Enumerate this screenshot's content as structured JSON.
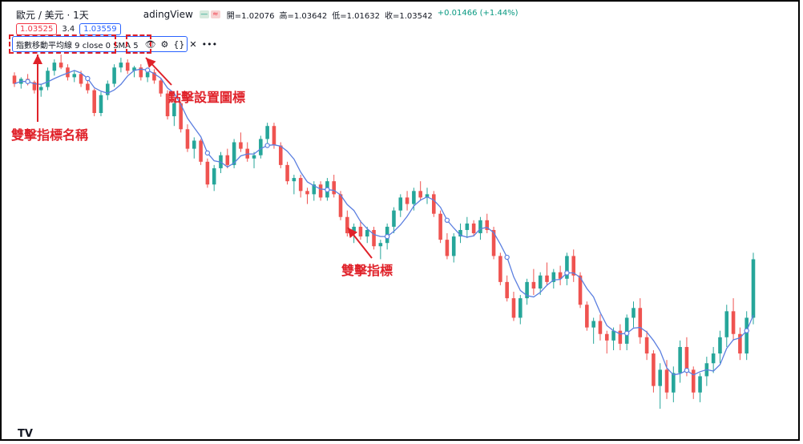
{
  "header": {
    "symbol": "歐元 / 美元 · 1天",
    "brand": "adingView",
    "ohlc": {
      "open": "開=1.02076",
      "high": "高=1.03642",
      "low": "低=1.01632",
      "close": "收=1.03542",
      "change": "+0.01466 (+1.44%)"
    }
  },
  "prices": {
    "sell": "1.03525",
    "spread": "3.4",
    "buy": "1.03559"
  },
  "indicator": {
    "name": "指數移動平均線 9 close 0 SMA 5",
    "eye_icon": "eye-icon",
    "settings_icon": "gear-icon",
    "source_icon": "code-braces-icon",
    "close_icon": "close-icon",
    "more_icon": "more-icon"
  },
  "annotations": {
    "settings": "點擊設置圖標",
    "indicator_name": "雙擊指標名稱",
    "indicator_line": "雙擊指標"
  },
  "logo": "TV",
  "colors": {
    "up": "#26a69a",
    "down": "#ef5350",
    "ma": "#5b7fe0",
    "annotation": "#e0222a",
    "accent": "#2962ff"
  },
  "chart_data": {
    "type": "candlestick",
    "series": [
      {
        "name": "candles",
        "values": [
          [
            1.075,
            1.077,
            1.068,
            1.07
          ],
          [
            1.07,
            1.074,
            1.067,
            1.073
          ],
          [
            1.073,
            1.076,
            1.069,
            1.071
          ],
          [
            1.071,
            1.072,
            1.064,
            1.066
          ],
          [
            1.066,
            1.07,
            1.062,
            1.068
          ],
          [
            1.068,
            1.08,
            1.066,
            1.078
          ],
          [
            1.078,
            1.085,
            1.075,
            1.083
          ],
          [
            1.083,
            1.088,
            1.079,
            1.08
          ],
          [
            1.08,
            1.082,
            1.072,
            1.074
          ],
          [
            1.074,
            1.078,
            1.071,
            1.076
          ],
          [
            1.076,
            1.078,
            1.068,
            1.07
          ],
          [
            1.07,
            1.073,
            1.064,
            1.066
          ],
          [
            1.066,
            1.067,
            1.05,
            1.052
          ],
          [
            1.052,
            1.065,
            1.05,
            1.063
          ],
          [
            1.063,
            1.072,
            1.06,
            1.07
          ],
          [
            1.07,
            1.082,
            1.068,
            1.08
          ],
          [
            1.08,
            1.086,
            1.077,
            1.083
          ],
          [
            1.083,
            1.085,
            1.076,
            1.078
          ],
          [
            1.078,
            1.081,
            1.074,
            1.08
          ],
          [
            1.08,
            1.082,
            1.072,
            1.074
          ],
          [
            1.074,
            1.079,
            1.071,
            1.077
          ],
          [
            1.077,
            1.079,
            1.07,
            1.072
          ],
          [
            1.072,
            1.073,
            1.062,
            1.064
          ],
          [
            1.064,
            1.066,
            1.048,
            1.05
          ],
          [
            1.05,
            1.06,
            1.044,
            1.058
          ],
          [
            1.058,
            1.059,
            1.04,
            1.042
          ],
          [
            1.042,
            1.045,
            1.028,
            1.03
          ],
          [
            1.03,
            1.037,
            1.024,
            1.035
          ],
          [
            1.035,
            1.036,
            1.02,
            1.022
          ],
          [
            1.022,
            1.024,
            1.006,
            1.008
          ],
          [
            1.008,
            1.02,
            1.004,
            1.018
          ],
          [
            1.018,
            1.028,
            1.015,
            1.026
          ],
          [
            1.026,
            1.03,
            1.018,
            1.02
          ],
          [
            1.02,
            1.036,
            1.018,
            1.034
          ],
          [
            1.034,
            1.04,
            1.028,
            1.03
          ],
          [
            1.03,
            1.034,
            1.022,
            1.024
          ],
          [
            1.024,
            1.028,
            1.018,
            1.026
          ],
          [
            1.026,
            1.038,
            1.024,
            1.036
          ],
          [
            1.036,
            1.046,
            1.032,
            1.044
          ],
          [
            1.044,
            1.046,
            1.03,
            1.032
          ],
          [
            1.032,
            1.034,
            1.018,
            1.02
          ],
          [
            1.02,
            1.022,
            1.008,
            1.01
          ],
          [
            1.01,
            1.014,
            1.002,
            1.012
          ],
          [
            1.012,
            1.014,
            1.0,
            1.004
          ],
          [
            1.004,
            1.006,
            0.996,
            1.002
          ],
          [
            1.002,
            1.01,
            0.998,
            1.008
          ],
          [
            1.008,
            1.01,
            0.998,
            1.0
          ],
          [
            1.0,
            1.012,
            0.998,
            1.01
          ],
          [
            1.01,
            1.014,
            1.0,
            1.002
          ],
          [
            1.002,
            1.004,
            0.986,
            0.988
          ],
          [
            0.988,
            0.992,
            0.976,
            0.978
          ],
          [
            0.978,
            0.984,
            0.972,
            0.982
          ],
          [
            0.982,
            0.986,
            0.974,
            0.976
          ],
          [
            0.976,
            0.982,
            0.972,
            0.98
          ],
          [
            0.98,
            0.982,
            0.968,
            0.97
          ],
          [
            0.97,
            0.974,
            0.962,
            0.972
          ],
          [
            0.972,
            0.984,
            0.968,
            0.982
          ],
          [
            0.982,
            0.994,
            0.978,
            0.992
          ],
          [
            0.992,
            1.002,
            0.988,
            1.0
          ],
          [
            1.0,
            1.004,
            0.992,
            0.996
          ],
          [
            0.996,
            1.006,
            0.992,
            1.004
          ],
          [
            1.004,
            1.01,
            0.998,
            1.0
          ],
          [
            1.0,
            1.006,
            0.996,
            1.002
          ],
          [
            1.002,
            1.004,
            0.988,
            0.99
          ],
          [
            0.99,
            0.992,
            0.972,
            0.974
          ],
          [
            0.974,
            0.978,
            0.962,
            0.964
          ],
          [
            0.964,
            0.978,
            0.96,
            0.976
          ],
          [
            0.976,
            0.984,
            0.972,
            0.98
          ],
          [
            0.98,
            0.988,
            0.975,
            0.984
          ],
          [
            0.984,
            0.986,
            0.976,
            0.978
          ],
          [
            0.978,
            0.988,
            0.974,
            0.986
          ],
          [
            0.986,
            0.99,
            0.978,
            0.98
          ],
          [
            0.98,
            0.982,
            0.962,
            0.964
          ],
          [
            0.964,
            0.966,
            0.946,
            0.948
          ],
          [
            0.948,
            0.952,
            0.936,
            0.938
          ],
          [
            0.938,
            0.942,
            0.924,
            0.926
          ],
          [
            0.926,
            0.94,
            0.922,
            0.938
          ],
          [
            0.938,
            0.95,
            0.934,
            0.948
          ],
          [
            0.948,
            0.956,
            0.94,
            0.944
          ],
          [
            0.944,
            0.954,
            0.94,
            0.952
          ],
          [
            0.952,
            0.96,
            0.946,
            0.948
          ],
          [
            0.948,
            0.956,
            0.944,
            0.954
          ],
          [
            0.954,
            0.958,
            0.946,
            0.95
          ],
          [
            0.95,
            0.966,
            0.946,
            0.964
          ],
          [
            0.964,
            0.968,
            0.948,
            0.952
          ],
          [
            0.952,
            0.954,
            0.932,
            0.934
          ],
          [
            0.934,
            0.936,
            0.918,
            0.92
          ],
          [
            0.92,
            0.926,
            0.91,
            0.924
          ],
          [
            0.924,
            0.928,
            0.912,
            0.916
          ],
          [
            0.916,
            0.918,
            0.904,
            0.912
          ],
          [
            0.912,
            0.92,
            0.906,
            0.918
          ],
          [
            0.918,
            0.922,
            0.906,
            0.91
          ],
          [
            0.91,
            0.928,
            0.906,
            0.926
          ],
          [
            0.926,
            0.936,
            0.92,
            0.932
          ],
          [
            0.932,
            0.938,
            0.91,
            0.914
          ],
          [
            0.914,
            0.918,
            0.9,
            0.904
          ],
          [
            0.904,
            0.906,
            0.88,
            0.884
          ],
          [
            0.884,
            0.898,
            0.87,
            0.894
          ],
          [
            0.894,
            0.9,
            0.876,
            0.88
          ],
          [
            0.88,
            0.896,
            0.874,
            0.892
          ],
          [
            0.892,
            0.912,
            0.886,
            0.908
          ],
          [
            0.908,
            0.914,
            0.89,
            0.894
          ],
          [
            0.894,
            0.896,
            0.876,
            0.88
          ],
          [
            0.88,
            0.892,
            0.874,
            0.89
          ],
          [
            0.89,
            0.902,
            0.884,
            0.898
          ],
          [
            0.898,
            0.908,
            0.892,
            0.904
          ],
          [
            0.904,
            0.918,
            0.898,
            0.914
          ],
          [
            0.914,
            0.934,
            0.908,
            0.93
          ],
          [
            0.93,
            0.938,
            0.912,
            0.916
          ],
          [
            0.916,
            0.92,
            0.9,
            0.904
          ],
          [
            0.904,
            0.93,
            0.9,
            0.926
          ],
          [
            0.926,
            0.966,
            0.922,
            0.962
          ]
        ]
      }
    ]
  }
}
